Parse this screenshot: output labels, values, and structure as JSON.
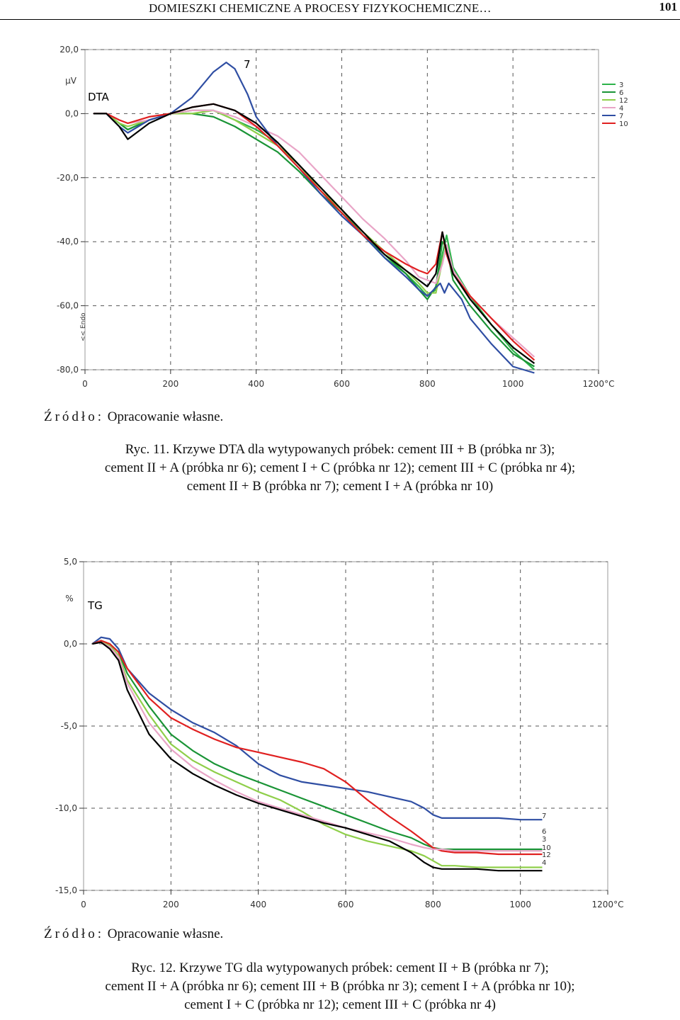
{
  "header": {
    "title": "DOMIESZKI CHEMICZNE A PROCESY FIZYKOCHEMICZNE…",
    "page_number": "101"
  },
  "figure11": {
    "source_label": "Źródło:",
    "source_text": "Opracowanie własne.",
    "caption_lines": [
      "Ryc. 11. Krzywe DTA dla wytypowanych próbek: cement III + B (próbka nr 3);",
      "cement II + A (próbka nr 6); cement I + C (próbka nr 12); cement III + C (próbka nr 4);",
      "cement II + B (próbka nr 7); cement I + A (próbka nr 10)"
    ]
  },
  "figure12": {
    "source_label": "Źródło:",
    "source_text": "Opracowanie własne.",
    "caption_lines": [
      "Ryc. 12. Krzywe TG dla wytypowanych próbek: cement II + B (próbka nr 7);",
      "cement II + A (próbka nr 6); cement III + B (próbka nr 3); cement I + A (próbka nr 10);",
      "cement I + C (próbka nr 12); cement III + C (próbka nr 4)"
    ]
  },
  "chart_data": [
    {
      "type": "line",
      "title": "DTA",
      "ylabel": "µV",
      "xlabel": "",
      "endo_label": "<< Endo",
      "peak_label": "7",
      "xlim": [
        0,
        1200
      ],
      "ylim": [
        -80,
        20
      ],
      "x_ticks": [
        "0",
        "200",
        "400",
        "600",
        "800",
        "1000",
        "1200°C"
      ],
      "y_ticks": [
        "20,0",
        "0,0",
        "-20,0",
        "-40,0",
        "-60,0",
        "-80,0"
      ],
      "x_tick_values": [
        0,
        200,
        400,
        600,
        800,
        1000,
        1200
      ],
      "y_tick_values": [
        20,
        0,
        -20,
        -40,
        -60,
        -80
      ],
      "grid": true,
      "legend_position": "top-right",
      "series": [
        {
          "name": "3",
          "color": "#2db34a",
          "x": [
            20,
            50,
            80,
            100,
            150,
            200,
            250,
            300,
            350,
            400,
            450,
            500,
            550,
            600,
            650,
            700,
            750,
            780,
            800,
            820,
            835,
            845,
            860,
            900,
            950,
            1000,
            1050
          ],
          "y": [
            0,
            0,
            -3,
            -5,
            -2,
            0,
            1,
            1,
            -2,
            -5,
            -9,
            -16,
            -23,
            -30,
            -38,
            -45,
            -50,
            -54,
            -57,
            -55,
            -44,
            -38,
            -48,
            -57,
            -66,
            -74,
            -80
          ]
        },
        {
          "name": "6",
          "color": "#1a9436",
          "x": [
            20,
            50,
            80,
            100,
            150,
            200,
            250,
            300,
            350,
            400,
            450,
            500,
            550,
            600,
            650,
            700,
            750,
            780,
            800,
            820,
            835,
            845,
            860,
            900,
            950,
            1000,
            1050
          ],
          "y": [
            0,
            0,
            -3,
            -5,
            -2,
            0,
            0,
            -1,
            -4,
            -8,
            -12,
            -18,
            -25,
            -31,
            -38,
            -44,
            -50,
            -55,
            -58,
            -54,
            -40,
            -42,
            -52,
            -60,
            -68,
            -75,
            -79
          ]
        },
        {
          "name": "12",
          "color": "#8fcf4a",
          "x": [
            20,
            50,
            80,
            100,
            150,
            200,
            250,
            300,
            350,
            400,
            450,
            500,
            550,
            600,
            650,
            700,
            750,
            780,
            800,
            820,
            835,
            845,
            860,
            900,
            950,
            1000,
            1050
          ],
          "y": [
            0,
            0,
            -3,
            -4,
            -2,
            0,
            0,
            1,
            -2,
            -6,
            -10,
            -16,
            -24,
            -30,
            -37,
            -43,
            -49,
            -53,
            -56,
            -56,
            -46,
            -41,
            -50,
            -58,
            -66,
            -73,
            -78
          ]
        },
        {
          "name": "4",
          "color": "#e9a5c7",
          "x": [
            20,
            50,
            80,
            100,
            150,
            200,
            250,
            300,
            350,
            400,
            450,
            500,
            550,
            600,
            650,
            700,
            750,
            780,
            800,
            820,
            835,
            845,
            860,
            900,
            950,
            1000,
            1050
          ],
          "y": [
            0,
            0,
            -2,
            -3,
            -2,
            0,
            1,
            1,
            -1,
            -4,
            -7,
            -12,
            -19,
            -26,
            -33,
            -39,
            -46,
            -51,
            -52,
            -53,
            -47,
            -41,
            -49,
            -57,
            -64,
            -70,
            -76
          ]
        },
        {
          "name": "7",
          "color": "#2f4ea3",
          "x": [
            20,
            50,
            80,
            100,
            150,
            200,
            250,
            300,
            330,
            350,
            380,
            400,
            450,
            500,
            550,
            600,
            650,
            700,
            750,
            780,
            800,
            830,
            840,
            850,
            880,
            900,
            950,
            1000,
            1050
          ],
          "y": [
            0,
            0,
            -4,
            -6,
            -2,
            0,
            5,
            13,
            16,
            14,
            6,
            -1,
            -10,
            -17,
            -25,
            -32,
            -38,
            -45,
            -51,
            -55,
            -57,
            -53,
            -56,
            -53,
            -58,
            -64,
            -72,
            -79,
            -81
          ]
        },
        {
          "name": "10",
          "color": "#e02020",
          "x": [
            20,
            50,
            80,
            100,
            150,
            200,
            250,
            300,
            350,
            400,
            450,
            500,
            550,
            600,
            650,
            700,
            750,
            780,
            800,
            820,
            835,
            845,
            860,
            900,
            950,
            1000,
            1050
          ],
          "y": [
            0,
            0,
            -2,
            -3,
            -1,
            0,
            2,
            3,
            1,
            -4,
            -10,
            -17,
            -24,
            -31,
            -38,
            -43,
            -47,
            -49,
            -50,
            -47,
            -37,
            -44,
            -50,
            -57,
            -64,
            -71,
            -77
          ]
        },
        {
          "name": "",
          "color": "#000000",
          "x": [
            20,
            50,
            80,
            100,
            150,
            200,
            250,
            300,
            350,
            400,
            450,
            500,
            550,
            600,
            650,
            700,
            750,
            780,
            800,
            820,
            835,
            845,
            860,
            900,
            950,
            1000,
            1050
          ],
          "y": [
            0,
            0,
            -4,
            -8,
            -3,
            0,
            2,
            3,
            1,
            -3,
            -9,
            -16,
            -23,
            -30,
            -37,
            -44,
            -49,
            -52,
            -54,
            -50,
            -37,
            -43,
            -50,
            -58,
            -66,
            -73,
            -78
          ]
        }
      ]
    },
    {
      "type": "line",
      "title": "TG",
      "ylabel": "%",
      "xlabel": "",
      "xlim": [
        0,
        1200
      ],
      "ylim": [
        -15,
        5
      ],
      "x_ticks": [
        "0",
        "200",
        "400",
        "600",
        "800",
        "1000",
        "1200°C"
      ],
      "y_ticks": [
        "5,0",
        "0,0",
        "-5,0",
        "-10,0",
        "-15,0"
      ],
      "x_tick_values": [
        0,
        200,
        400,
        600,
        800,
        1000,
        1200
      ],
      "y_tick_values": [
        5,
        0,
        -5,
        -10,
        -15
      ],
      "grid": true,
      "end_labels": [
        "7",
        "6",
        "3",
        "10",
        "12",
        "4"
      ],
      "series": [
        {
          "name": "7",
          "color": "#2f4ea3",
          "x": [
            20,
            40,
            60,
            80,
            100,
            150,
            200,
            250,
            300,
            350,
            400,
            450,
            500,
            550,
            600,
            650,
            700,
            750,
            780,
            800,
            820,
            850,
            900,
            950,
            1000,
            1050
          ],
          "y": [
            0,
            0.4,
            0.3,
            -0.3,
            -1.5,
            -3.0,
            -4.0,
            -4.8,
            -5.4,
            -6.2,
            -7.3,
            -8.0,
            -8.4,
            -8.6,
            -8.8,
            -9.0,
            -9.3,
            -9.6,
            -10.0,
            -10.4,
            -10.6,
            -10.6,
            -10.6,
            -10.6,
            -10.7,
            -10.7
          ]
        },
        {
          "name": "6",
          "color": "#1a9436",
          "x": [
            20,
            40,
            60,
            80,
            100,
            150,
            200,
            250,
            300,
            350,
            400,
            450,
            500,
            550,
            600,
            650,
            700,
            750,
            780,
            800,
            820,
            850,
            900,
            950,
            1000,
            1050
          ],
          "y": [
            0,
            0.2,
            0,
            -0.5,
            -1.8,
            -3.8,
            -5.5,
            -6.5,
            -7.3,
            -7.9,
            -8.4,
            -8.9,
            -9.4,
            -9.9,
            -10.4,
            -10.9,
            -11.4,
            -11.8,
            -12.2,
            -12.4,
            -12.5,
            -12.5,
            -12.5,
            -12.5,
            -12.5,
            -12.5
          ]
        },
        {
          "name": "3",
          "color": "#8fcf4a",
          "x": [
            20,
            40,
            60,
            80,
            100,
            150,
            200,
            250,
            300,
            350,
            400,
            450,
            500,
            550,
            600,
            650,
            700,
            750,
            780,
            800,
            820,
            850,
            900,
            950,
            1000,
            1050
          ],
          "y": [
            0,
            0.1,
            -0.1,
            -0.7,
            -2.2,
            -4.3,
            -6.1,
            -7.1,
            -7.8,
            -8.4,
            -9.0,
            -9.5,
            -10.2,
            -11.0,
            -11.6,
            -12.0,
            -12.3,
            -12.6,
            -12.9,
            -13.2,
            -13.5,
            -13.5,
            -13.6,
            -13.6,
            -13.6,
            -13.6
          ]
        },
        {
          "name": "10",
          "color": "#e02020",
          "x": [
            20,
            40,
            60,
            80,
            100,
            150,
            200,
            250,
            300,
            350,
            400,
            450,
            500,
            550,
            600,
            650,
            700,
            750,
            780,
            800,
            820,
            850,
            900,
            950,
            1000,
            1050
          ],
          "y": [
            0,
            0.2,
            0,
            -0.5,
            -1.5,
            -3.3,
            -4.5,
            -5.2,
            -5.8,
            -6.3,
            -6.6,
            -6.9,
            -7.2,
            -7.6,
            -8.4,
            -9.5,
            -10.5,
            -11.4,
            -12.0,
            -12.4,
            -12.6,
            -12.7,
            -12.7,
            -12.8,
            -12.8,
            -12.8
          ]
        },
        {
          "name": "12",
          "color": "#e9a5c7",
          "x": [
            20,
            40,
            60,
            80,
            100,
            150,
            200,
            250,
            300,
            350,
            400,
            450,
            500,
            550,
            600,
            650,
            700,
            750,
            780,
            800,
            820,
            850,
            900,
            950,
            1000,
            1050
          ],
          "y": [
            0,
            0.1,
            -0.2,
            -0.8,
            -2.4,
            -4.8,
            -6.4,
            -7.5,
            -8.3,
            -9.0,
            -9.6,
            -10.0,
            -10.4,
            -10.8,
            -11.2,
            -11.5,
            -11.8,
            -12.2,
            -12.4,
            -12.5,
            -12.5,
            -12.6,
            -12.6,
            -12.6,
            -12.6,
            -12.6
          ]
        },
        {
          "name": "4",
          "color": "#000000",
          "x": [
            20,
            40,
            60,
            80,
            100,
            150,
            200,
            250,
            300,
            350,
            400,
            450,
            500,
            550,
            600,
            650,
            700,
            750,
            780,
            800,
            820,
            850,
            900,
            950,
            1000,
            1050
          ],
          "y": [
            0,
            0.1,
            -0.3,
            -1.0,
            -2.8,
            -5.5,
            -7.0,
            -7.9,
            -8.6,
            -9.2,
            -9.7,
            -10.1,
            -10.5,
            -10.9,
            -11.2,
            -11.6,
            -12.0,
            -12.7,
            -13.3,
            -13.6,
            -13.7,
            -13.7,
            -13.7,
            -13.8,
            -13.8,
            -13.8
          ]
        }
      ]
    }
  ]
}
